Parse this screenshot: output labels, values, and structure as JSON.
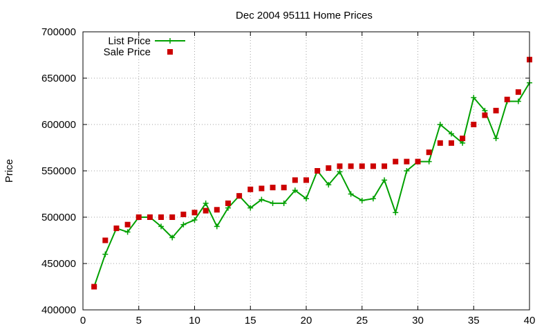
{
  "chart_data": {
    "type": "line",
    "title": "Dec 2004 95111 Home Prices",
    "xlabel": "",
    "ylabel": "Price",
    "xlim": [
      0,
      40
    ],
    "ylim": [
      400000,
      700000
    ],
    "x_ticks": [
      0,
      5,
      10,
      15,
      20,
      25,
      30,
      35,
      40
    ],
    "y_ticks": [
      400000,
      450000,
      500000,
      550000,
      600000,
      650000,
      700000
    ],
    "grid": true,
    "legend_position": "top-left",
    "series": [
      {
        "name": "List Price",
        "style": "line+cross",
        "color": "#00a000",
        "x": [
          1,
          2,
          3,
          4,
          5,
          6,
          7,
          8,
          9,
          10,
          11,
          12,
          13,
          14,
          15,
          16,
          17,
          18,
          19,
          20,
          21,
          22,
          23,
          24,
          25,
          26,
          27,
          28,
          29,
          30,
          31,
          32,
          33,
          34,
          35,
          36,
          37,
          38,
          39,
          40
        ],
        "values": [
          425000,
          460000,
          488000,
          484000,
          500000,
          500000,
          490000,
          478000,
          492000,
          497000,
          515000,
          490000,
          510000,
          523000,
          510000,
          519000,
          515000,
          515000,
          529000,
          520000,
          550000,
          535000,
          549000,
          525000,
          518000,
          520000,
          540000,
          505000,
          550000,
          560000,
          560000,
          600000,
          590000,
          580000,
          629000,
          615000,
          585000,
          625000,
          625000,
          645000
        ]
      },
      {
        "name": "Sale Price",
        "style": "square",
        "color": "#cc0000",
        "x": [
          1,
          2,
          3,
          4,
          5,
          6,
          7,
          8,
          9,
          10,
          11,
          12,
          13,
          14,
          15,
          16,
          17,
          18,
          19,
          20,
          21,
          22,
          23,
          24,
          25,
          26,
          27,
          28,
          29,
          30,
          31,
          32,
          33,
          34,
          35,
          36,
          37,
          38,
          39,
          40
        ],
        "values": [
          425000,
          475000,
          488000,
          492000,
          500000,
          500000,
          500000,
          500000,
          503000,
          505000,
          507000,
          508000,
          515000,
          523000,
          530000,
          531000,
          532000,
          532000,
          540000,
          540000,
          550000,
          553000,
          555000,
          555000,
          555000,
          555000,
          555000,
          560000,
          560000,
          560000,
          570000,
          580000,
          580000,
          585000,
          600000,
          610000,
          615000,
          627000,
          635000,
          670000
        ]
      }
    ]
  }
}
